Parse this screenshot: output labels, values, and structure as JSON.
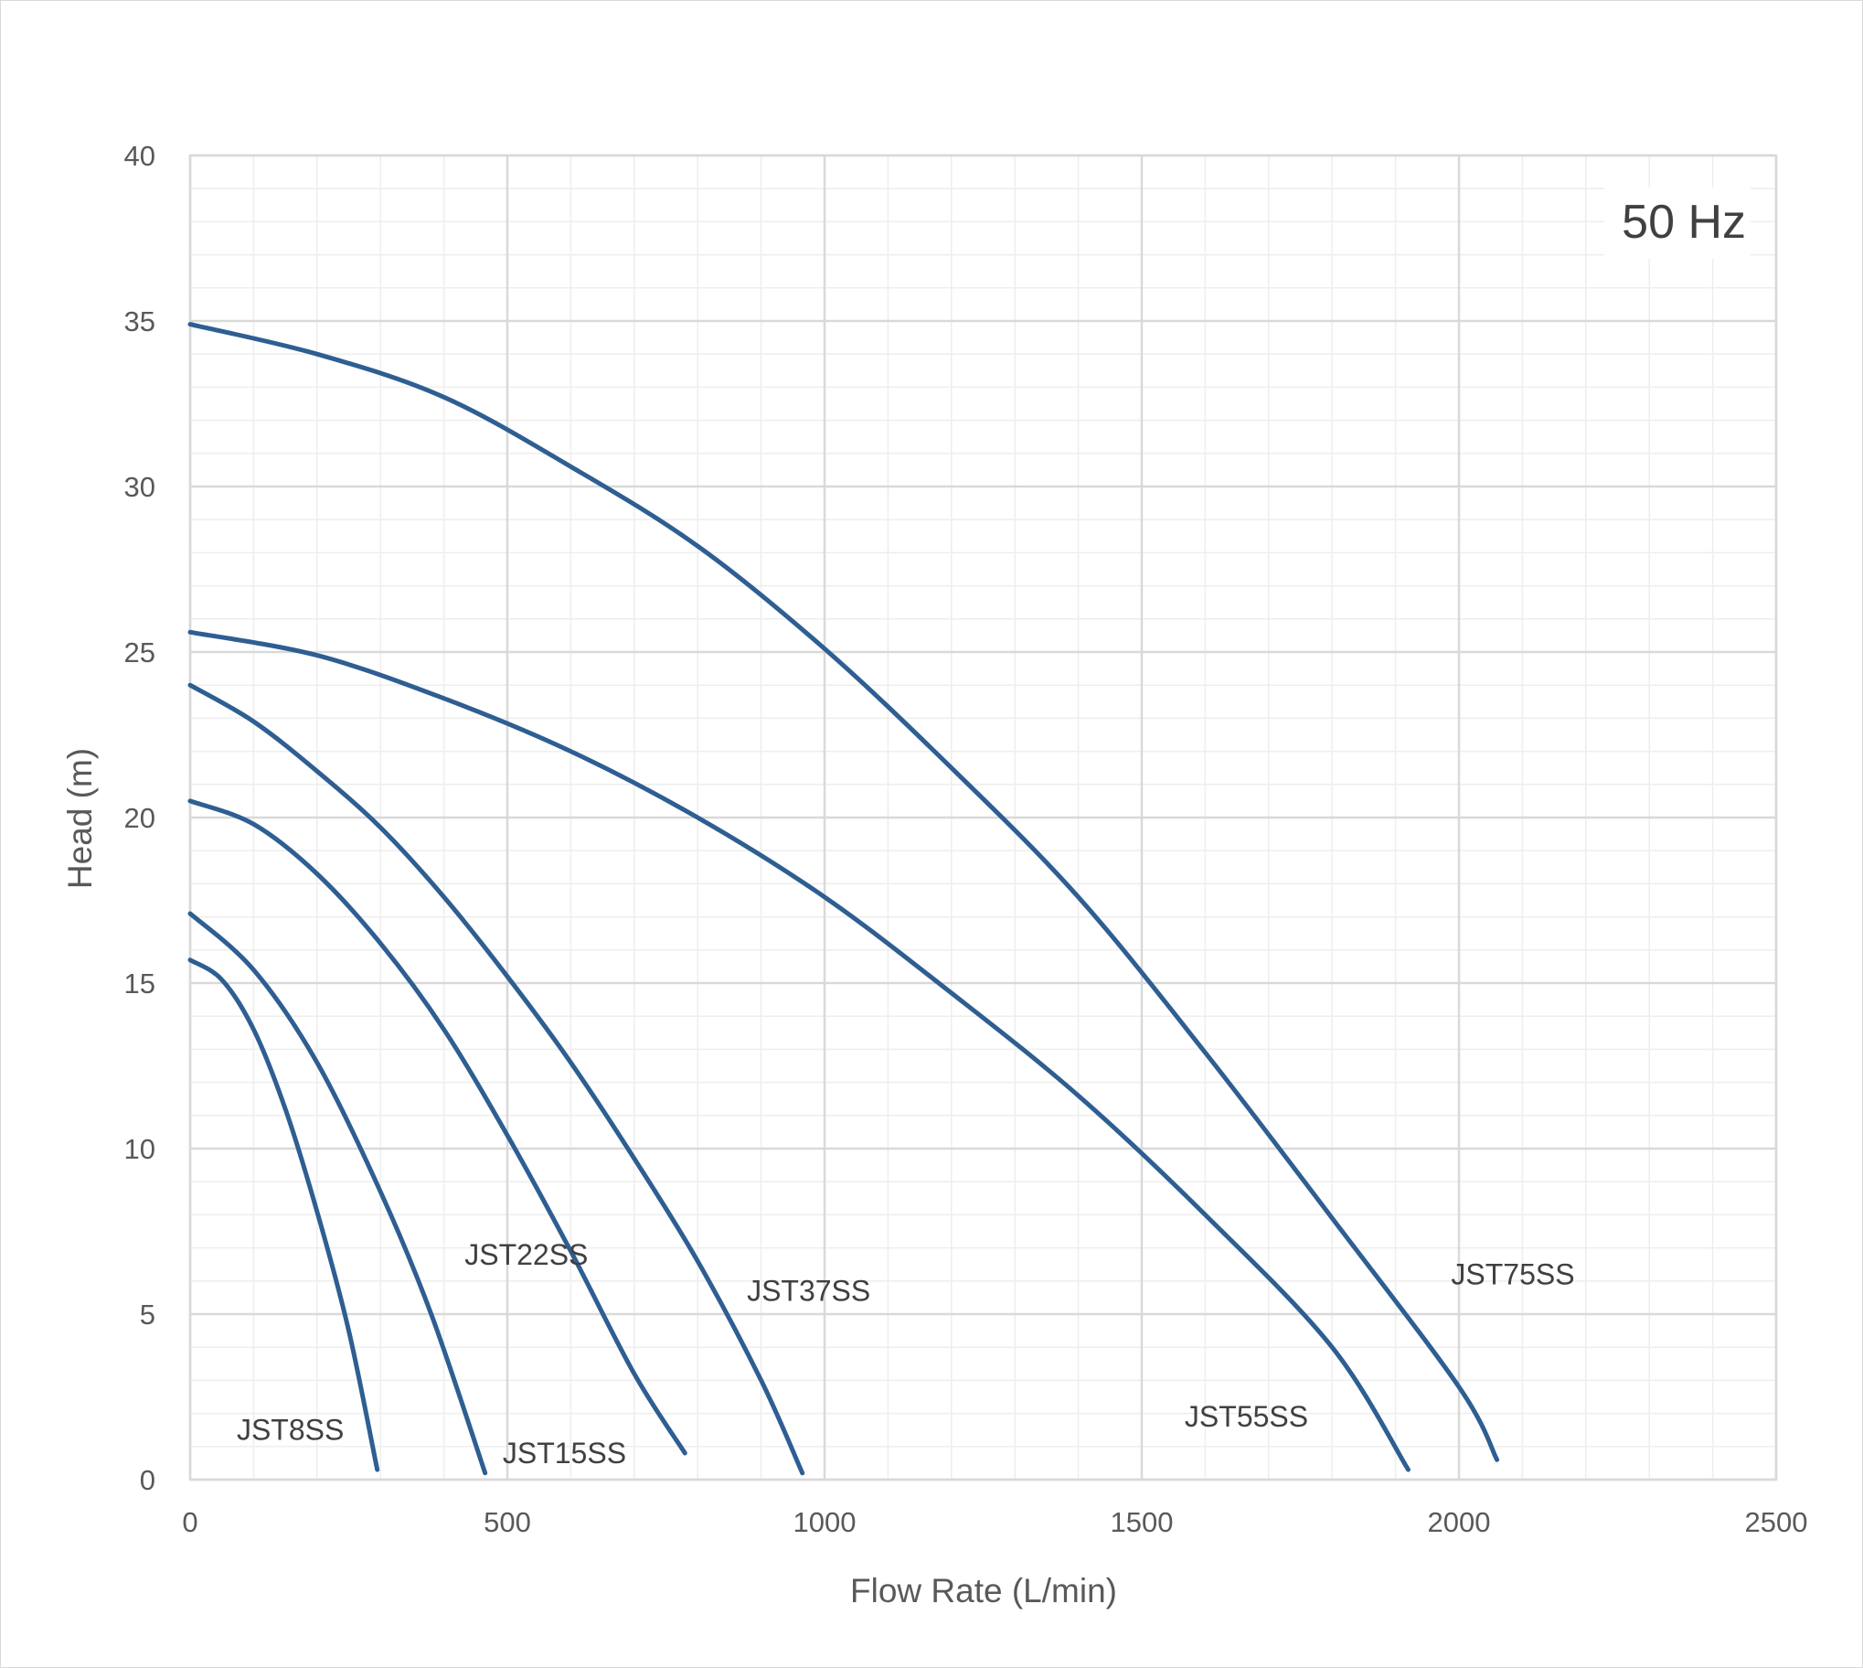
{
  "chart_data": {
    "type": "line",
    "title": "",
    "annotation": "50 Hz",
    "xlabel": "Flow Rate (L/min)",
    "ylabel": "Head (m)",
    "xlim": [
      0,
      2500
    ],
    "ylim": [
      0,
      40
    ],
    "xticks": [
      "0",
      "500",
      "1000",
      "1500",
      "2000",
      "2500"
    ],
    "yticks": [
      "0",
      "5",
      "10",
      "15",
      "20",
      "25",
      "30",
      "35",
      "40"
    ],
    "grid": true,
    "minor_grid": true,
    "line_color": "#2E5E92",
    "series": [
      {
        "name": "JST8SS",
        "points": [
          [
            0,
            15.7
          ],
          [
            50,
            15.1
          ],
          [
            100,
            13.6
          ],
          [
            150,
            11.2
          ],
          [
            200,
            8.1
          ],
          [
            250,
            4.5
          ],
          [
            295,
            0.3
          ]
        ]
      },
      {
        "name": "JST15SS",
        "points": [
          [
            0,
            17.1
          ],
          [
            100,
            15.4
          ],
          [
            200,
            12.6
          ],
          [
            300,
            8.7
          ],
          [
            380,
            5.0
          ],
          [
            465,
            0.2
          ]
        ]
      },
      {
        "name": "JST22SS",
        "points": [
          [
            0,
            20.5
          ],
          [
            100,
            19.8
          ],
          [
            200,
            18.3
          ],
          [
            300,
            16.2
          ],
          [
            400,
            13.6
          ],
          [
            500,
            10.4
          ],
          [
            600,
            6.9
          ],
          [
            700,
            3.2
          ],
          [
            780,
            0.8
          ]
        ]
      },
      {
        "name": "JST37SS",
        "points": [
          [
            0,
            24.0
          ],
          [
            100,
            22.9
          ],
          [
            200,
            21.4
          ],
          [
            300,
            19.7
          ],
          [
            400,
            17.6
          ],
          [
            500,
            15.2
          ],
          [
            600,
            12.6
          ],
          [
            700,
            9.7
          ],
          [
            800,
            6.6
          ],
          [
            900,
            3.0
          ],
          [
            965,
            0.2
          ]
        ]
      },
      {
        "name": "JST55SS",
        "points": [
          [
            0,
            25.6
          ],
          [
            200,
            24.9
          ],
          [
            400,
            23.6
          ],
          [
            600,
            22.0
          ],
          [
            800,
            20.0
          ],
          [
            1000,
            17.6
          ],
          [
            1200,
            14.7
          ],
          [
            1400,
            11.6
          ],
          [
            1600,
            8.0
          ],
          [
            1800,
            4.0
          ],
          [
            1920,
            0.3
          ]
        ]
      },
      {
        "name": "JST75SS",
        "points": [
          [
            0,
            34.9
          ],
          [
            200,
            34.0
          ],
          [
            400,
            32.7
          ],
          [
            600,
            30.6
          ],
          [
            800,
            28.2
          ],
          [
            1000,
            25.1
          ],
          [
            1200,
            21.5
          ],
          [
            1400,
            17.6
          ],
          [
            1600,
            12.9
          ],
          [
            1800,
            7.9
          ],
          [
            2000,
            2.8
          ],
          [
            2060,
            0.6
          ]
        ]
      }
    ],
    "labels": [
      {
        "text": "JST8SS",
        "at": [
          158,
          1.5
        ]
      },
      {
        "text": "JST15SS",
        "at": [
          590,
          0.8
        ]
      },
      {
        "text": "JST22SS",
        "at": [
          530,
          6.8
        ]
      },
      {
        "text": "JST37SS",
        "at": [
          975,
          5.7
        ]
      },
      {
        "text": "JST55SS",
        "at": [
          1665,
          1.9
        ]
      },
      {
        "text": "JST75SS",
        "at": [
          2085,
          6.2
        ]
      }
    ]
  }
}
